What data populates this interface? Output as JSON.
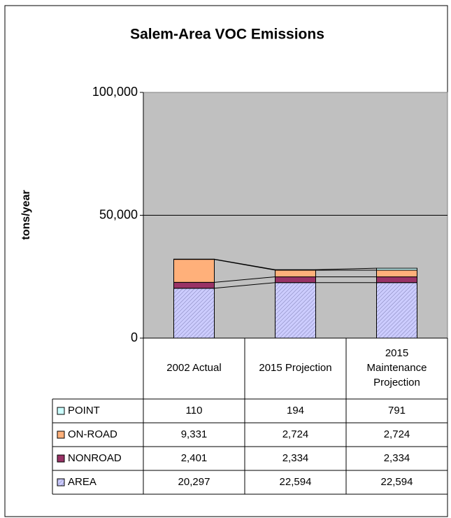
{
  "chart_data": {
    "type": "bar",
    "stacked": true,
    "title": "Salem-Area VOC Emissions",
    "ylabel": "tons/year",
    "categories": [
      "2002 Actual",
      "2015 Projection",
      "2015 Maintenance Projection"
    ],
    "series": [
      {
        "name": "AREA",
        "color": "#ccccff",
        "hatch": true,
        "values": [
          20297,
          22594,
          22594
        ],
        "value_labels": [
          "20,297",
          "22,594",
          "22,594"
        ]
      },
      {
        "name": "NONROAD",
        "color": "#993366",
        "values": [
          2401,
          2334,
          2334
        ],
        "value_labels": [
          "2,401",
          "2,334",
          "2,334"
        ]
      },
      {
        "name": "ON-ROAD",
        "color": "#ffb07a",
        "values": [
          9331,
          2724,
          2724
        ],
        "value_labels": [
          "9,331",
          "2,724",
          "2,724"
        ]
      },
      {
        "name": "POINT",
        "color": "#ccffff",
        "values": [
          110,
          194,
          791
        ]
      }
    ],
    "ylim": [
      0,
      100000
    ],
    "yticks": [
      0,
      {
        "value": 50000,
        "label": "50,000"
      },
      {
        "value": 100000,
        "label": "100,000"
      }
    ],
    "grid": true,
    "plot_background": "#c0c0c0",
    "series_lines": true,
    "data_table": true
  }
}
